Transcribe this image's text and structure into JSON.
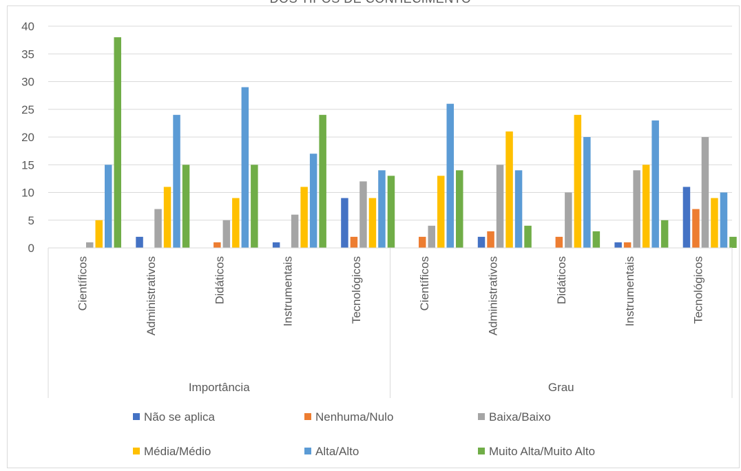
{
  "chart_data": {
    "type": "bar",
    "title": "DOS TIPOS DE CONHECIMENTO",
    "ylim": [
      0,
      40
    ],
    "yticks": [
      0,
      5,
      10,
      15,
      20,
      25,
      30,
      35,
      40
    ],
    "grid": true,
    "legend_position": "bottom",
    "groups": [
      {
        "label": "Importância",
        "categories": [
          "Científicos",
          "Administrativos",
          "Didáticos",
          "Instrumentais",
          "Tecnológicos"
        ]
      },
      {
        "label": "Grau",
        "categories": [
          "Científicos",
          "Administrativos",
          "Didáticos",
          "Instrumentais",
          "Tecnológicos"
        ]
      }
    ],
    "series": [
      {
        "name": "Não se aplica",
        "color": "#4472c4",
        "values": [
          0,
          2,
          0,
          1,
          9,
          0,
          2,
          0,
          1,
          11
        ]
      },
      {
        "name": "Nenhuma/Nulo",
        "color": "#ed7d31",
        "values": [
          0,
          0,
          1,
          0,
          2,
          2,
          3,
          2,
          1,
          7
        ]
      },
      {
        "name": "Baixa/Baixo",
        "color": "#a5a5a5",
        "values": [
          1,
          7,
          5,
          6,
          12,
          4,
          15,
          10,
          14,
          20
        ]
      },
      {
        "name": "Média/Médio",
        "color": "#ffc000",
        "values": [
          5,
          11,
          9,
          11,
          9,
          13,
          21,
          24,
          15,
          9
        ]
      },
      {
        "name": "Alta/Alto",
        "color": "#5b9bd5",
        "values": [
          15,
          24,
          29,
          17,
          14,
          26,
          14,
          20,
          23,
          10
        ]
      },
      {
        "name": "Muito Alta/Muito Alto",
        "color": "#70ad47",
        "values": [
          38,
          15,
          15,
          24,
          13,
          14,
          4,
          3,
          5,
          2
        ]
      }
    ]
  }
}
